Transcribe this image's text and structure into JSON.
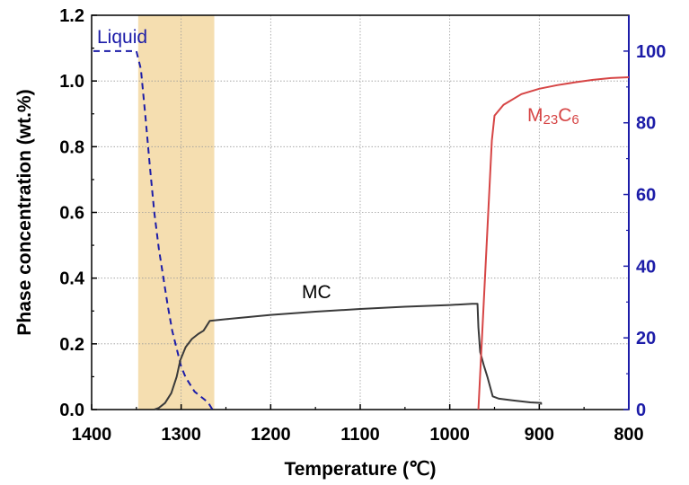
{
  "chart_data": {
    "type": "line",
    "xlabel": "Temperature (℃)",
    "ylabel": "Phase concentration (wt.%)",
    "x_axis": {
      "range": [
        1400,
        800
      ],
      "ticks": [
        "1400",
        "1300",
        "1200",
        "1100",
        "1000",
        "900",
        "800"
      ],
      "reversed": true
    },
    "y_axis_left": {
      "range": [
        0,
        1.2
      ],
      "ticks": [
        "0.0",
        "0.2",
        "0.4",
        "0.6",
        "0.8",
        "1.0",
        "1.2"
      ]
    },
    "y_axis_right": {
      "range": [
        0,
        110
      ],
      "ticks": [
        "0",
        "20",
        "40",
        "60",
        "80",
        "100"
      ],
      "color": "#1c1ca8"
    },
    "grid": true,
    "highlight_band": {
      "x_from": 1348,
      "x_to": 1263,
      "color": "#f5deb0"
    },
    "series": [
      {
        "name": "Liquid",
        "axis": "right",
        "color": "#1c1ca8",
        "style": "dashed",
        "points": [
          [
            1398,
            100
          ],
          [
            1350,
            100
          ],
          [
            1345,
            95
          ],
          [
            1340,
            82
          ],
          [
            1335,
            68
          ],
          [
            1330,
            55
          ],
          [
            1325,
            45
          ],
          [
            1320,
            37
          ],
          [
            1315,
            29
          ],
          [
            1310,
            22
          ],
          [
            1305,
            17
          ],
          [
            1300,
            12
          ],
          [
            1295,
            9
          ],
          [
            1290,
            7
          ],
          [
            1285,
            5
          ],
          [
            1280,
            4
          ],
          [
            1275,
            3
          ],
          [
            1270,
            2
          ],
          [
            1265,
            0
          ]
        ]
      },
      {
        "name": "MC",
        "axis": "left",
        "color": "#3a3a3a",
        "style": "solid",
        "points": [
          [
            1330,
            0
          ],
          [
            1325,
            0.005
          ],
          [
            1318,
            0.02
          ],
          [
            1311,
            0.05
          ],
          [
            1305,
            0.1
          ],
          [
            1301,
            0.15
          ],
          [
            1295,
            0.19
          ],
          [
            1288,
            0.215
          ],
          [
            1281,
            0.23
          ],
          [
            1275,
            0.24
          ],
          [
            1268,
            0.27
          ],
          [
            1250,
            0.275
          ],
          [
            1200,
            0.288
          ],
          [
            1150,
            0.298
          ],
          [
            1100,
            0.306
          ],
          [
            1050,
            0.313
          ],
          [
            1000,
            0.318
          ],
          [
            975,
            0.322
          ],
          [
            969,
            0.322
          ],
          [
            968,
            0.25
          ],
          [
            966,
            0.175
          ],
          [
            962,
            0.135
          ],
          [
            958,
            0.1
          ],
          [
            955,
            0.07
          ],
          [
            952,
            0.04
          ],
          [
            945,
            0.033
          ],
          [
            930,
            0.028
          ],
          [
            910,
            0.022
          ],
          [
            898,
            0.02
          ],
          [
            898,
            0.015
          ]
        ]
      },
      {
        "name": "M23C6",
        "axis": "right",
        "color": "#d64545",
        "style": "solid",
        "points": [
          [
            968,
            0
          ],
          [
            965,
            15
          ],
          [
            962,
            30
          ],
          [
            959,
            45
          ],
          [
            956,
            60
          ],
          [
            953,
            75
          ],
          [
            950,
            82
          ],
          [
            940,
            85
          ],
          [
            920,
            88
          ],
          [
            900,
            89.5
          ],
          [
            880,
            90.5
          ],
          [
            860,
            91.3
          ],
          [
            840,
            92
          ],
          [
            820,
            92.5
          ],
          [
            800,
            92.7
          ]
        ]
      }
    ],
    "annotations": {
      "liquid": "Liquid",
      "mc": "MC",
      "m23c6_base": "M",
      "m23c6_sub1": "23",
      "m23c6_mid": "C",
      "m23c6_sub2": "6"
    }
  }
}
